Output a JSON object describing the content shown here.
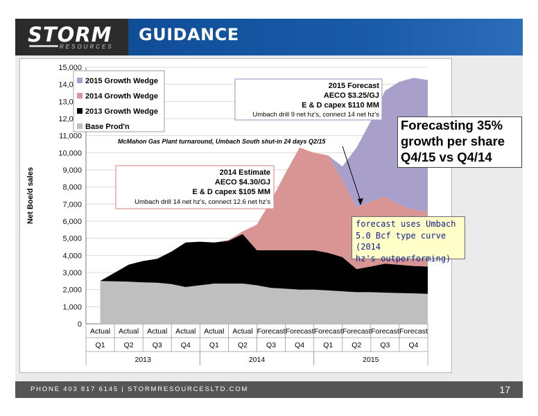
{
  "header": {
    "logo_text": "STORM",
    "logo_subtext": "RESOURCES",
    "title": "GUIDANCE"
  },
  "footer": {
    "contact": "PHONE 403 817 6145  |  STORMRESOURCESLTD.COM",
    "page_number": "17"
  },
  "callouts": {
    "forecast_growth": [
      "Forecasting 35%",
      "growth per share",
      "Q4/15 vs Q4/14"
    ],
    "type_curve": [
      "forecast uses Umbach",
      "5.0 Bcf type curve (2014",
      "hz's outperforming)"
    ]
  },
  "chart_data": {
    "type": "area",
    "stacked": true,
    "ylabel": "Net Boe/d sales",
    "ylim": [
      0,
      15000
    ],
    "ytick_step": 1000,
    "grid": true,
    "legend_position": "top-left",
    "categories": [
      {
        "type": "Actual",
        "quarter": "Q1"
      },
      {
        "type": "Actual",
        "quarter": "Q2"
      },
      {
        "type": "Actual",
        "quarter": "Q3"
      },
      {
        "type": "Actual",
        "quarter": "Q4"
      },
      {
        "type": "Actual",
        "quarter": "Q1"
      },
      {
        "type": "Actual",
        "quarter": "Q2"
      },
      {
        "type": "Forecast",
        "quarter": "Q3"
      },
      {
        "type": "Forecast",
        "quarter": "Q4"
      },
      {
        "type": "Forecast",
        "quarter": "Q1"
      },
      {
        "type": "Forecast",
        "quarter": "Q2"
      },
      {
        "type": "Forecast",
        "quarter": "Q3"
      },
      {
        "type": "Forecast",
        "quarter": "Q4"
      }
    ],
    "years": [
      {
        "label": "2013",
        "start": 0,
        "end": 4
      },
      {
        "label": "2014",
        "start": 4,
        "end": 8
      },
      {
        "label": "2015",
        "start": 8,
        "end": 12
      }
    ],
    "x": [
      0,
      0.5,
      1,
      1.5,
      2,
      2.5,
      3,
      3.5,
      4,
      4.5,
      5,
      5.5,
      6,
      6.5,
      7,
      7.5,
      8,
      8.5,
      9,
      9.5,
      10,
      10.5,
      11,
      11.5
    ],
    "series": [
      {
        "name": "Base Prod'n",
        "color": "#bfbfbf",
        "values": [
          2500,
          2480,
          2460,
          2420,
          2400,
          2320,
          2150,
          2250,
          2350,
          2350,
          2350,
          2250,
          2100,
          2050,
          2000,
          2000,
          1950,
          1900,
          1850,
          1850,
          1820,
          1800,
          1780,
          1750
        ]
      },
      {
        "name": "2013 Growth Wedge",
        "color": "#000000",
        "values": [
          0,
          500,
          1000,
          1250,
          1400,
          1900,
          2600,
          2550,
          2400,
          2500,
          2900,
          2050,
          2200,
          2250,
          2300,
          2300,
          2200,
          2000,
          1350,
          1500,
          1700,
          1650,
          1600,
          1600
        ]
      },
      {
        "name": "2014 Growth Wedge",
        "color": "#d99593",
        "values": [
          0,
          0,
          0,
          0,
          0,
          0,
          0,
          0,
          0,
          50,
          150,
          1500,
          2900,
          4500,
          6000,
          5700,
          5700,
          4500,
          3600,
          3800,
          3900,
          3500,
          3300,
          3200
        ]
      },
      {
        "name": "2015 Growth Wedge",
        "color": "#a89fca",
        "values": [
          0,
          0,
          0,
          0,
          0,
          0,
          0,
          0,
          0,
          0,
          0,
          0,
          0,
          0,
          0,
          0,
          0,
          800,
          3500,
          4700,
          6200,
          7200,
          7700,
          7700
        ]
      }
    ],
    "annotations": {
      "estimate_2014": [
        "2014 Estimate",
        "AECO $4.30/GJ",
        "E & D capex $105 MM",
        "Umbach drill 14 net hz's, connect 12.6 net hz's"
      ],
      "forecast_2015": [
        "2015 Forecast",
        "AECO $3.25/GJ",
        "E & D capex $110 MM",
        "Umbach drill 9 net hz's, connect 14 net hz's"
      ],
      "turnaround": "McMahon Gas Plant turnaround, Umbach South shut-in 24 days Q2/15"
    }
  }
}
